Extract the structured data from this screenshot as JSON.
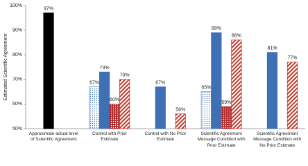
{
  "chart_data": {
    "type": "bar",
    "y_label": "Estimated Scientific Agreement",
    "categories": [
      "Approximate actual level of Scientific Agreement",
      "Control with Prior Estimate",
      "Control with No Prior Estimate",
      "Scientific Agreement Message Condition with Prior Estimate",
      "Scientific Agreement Message Condition with No Prior Estimate"
    ],
    "series": [
      {
        "color": "#000000",
        "pattern": "solid",
        "values": [
          97,
          null,
          null,
          null,
          null
        ],
        "value_labels": [
          "97%",
          null,
          null,
          null,
          null
        ]
      },
      {
        "color": "#4a7ebb",
        "pattern": "dots",
        "values": [
          null,
          67,
          null,
          65,
          null
        ],
        "value_labels": [
          null,
          "67%",
          null,
          "65%",
          null
        ]
      },
      {
        "color": "#3f6fb5",
        "pattern": "solid",
        "values": [
          null,
          73,
          67,
          89,
          81
        ],
        "value_labels": [
          null,
          "73%",
          "67%",
          "89%",
          "81%"
        ]
      },
      {
        "color": "#b22a2a",
        "pattern": "dots",
        "values": [
          null,
          60,
          null,
          59,
          null
        ],
        "value_labels": [
          null,
          "60%",
          null,
          "59%",
          null
        ]
      },
      {
        "color": "#c0392b",
        "pattern": "stripes",
        "values": [
          null,
          70,
          56,
          86,
          77
        ],
        "value_labels": [
          null,
          "70%",
          "56%",
          "86%",
          "77%"
        ]
      }
    ],
    "ylim": [
      50,
      100
    ],
    "yticks": [
      {
        "value": 50,
        "label": "50%"
      },
      {
        "value": 60,
        "label": "60%"
      },
      {
        "value": 70,
        "label": "70%"
      },
      {
        "value": 80,
        "label": "80%"
      },
      {
        "value": 90,
        "label": "90%"
      },
      {
        "value": 100,
        "label": "100%"
      }
    ],
    "grid": false
  }
}
